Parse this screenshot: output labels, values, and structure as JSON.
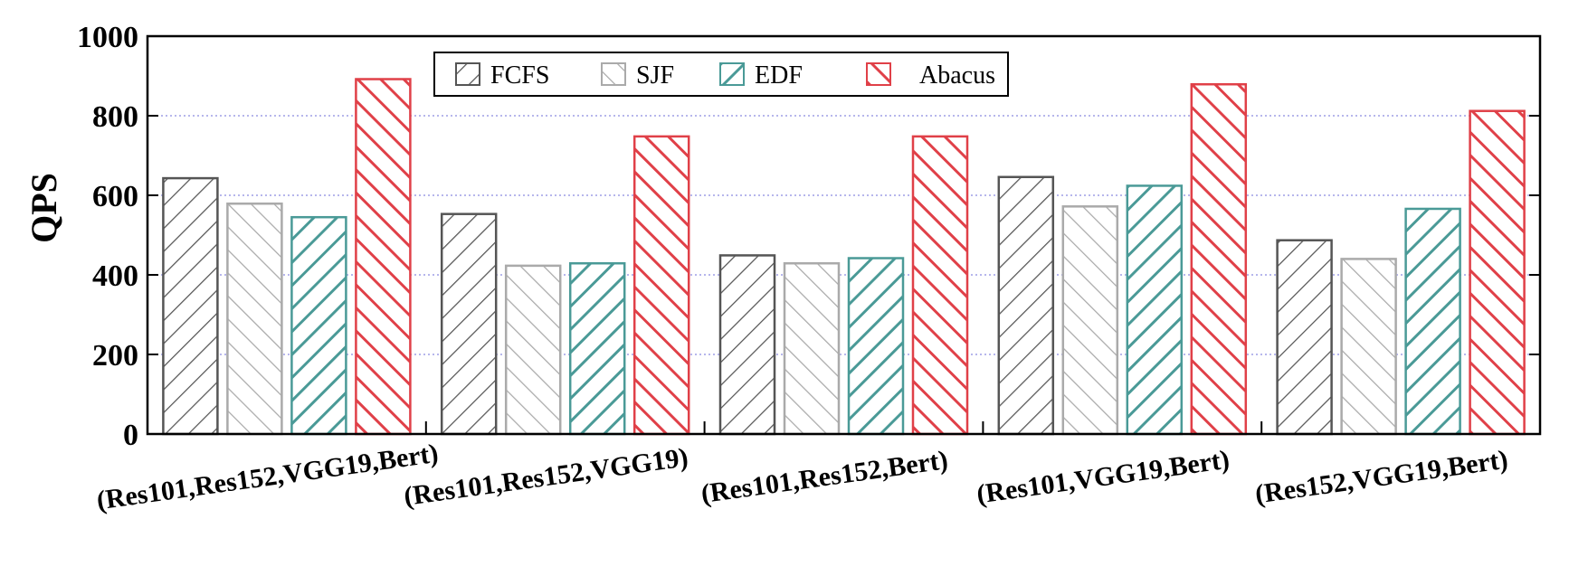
{
  "chart_data": {
    "type": "bar",
    "categories": [
      "(Res101,Res152,VGG19,Bert)",
      "(Res101,Res152,VGG19)",
      "(Res101,Res152,Bert)",
      "(Res101,VGG19,Bert)",
      "(Res152,VGG19,Bert)"
    ],
    "series": [
      {
        "name": "FCFS",
        "values": [
          643,
          553,
          449,
          646,
          487
        ],
        "color": "#555555",
        "hatch": "forward"
      },
      {
        "name": "SJF",
        "values": [
          579,
          423,
          429,
          572,
          440
        ],
        "color": "#aaaaaa",
        "hatch": "back"
      },
      {
        "name": "EDF",
        "values": [
          545,
          429,
          442,
          624,
          566
        ],
        "color": "#4a9a97",
        "hatch": "forward"
      },
      {
        "name": "Abacus",
        "values": [
          892,
          748,
          748,
          879,
          812
        ],
        "color": "#e04048",
        "hatch": "back"
      }
    ],
    "title": "",
    "xlabel": "",
    "ylabel": "QPS",
    "ylim": [
      0,
      1000
    ],
    "yticks": [
      0,
      200,
      400,
      600,
      800,
      1000
    ],
    "grid": "horizontal dotted",
    "legend_position": "top-left"
  }
}
